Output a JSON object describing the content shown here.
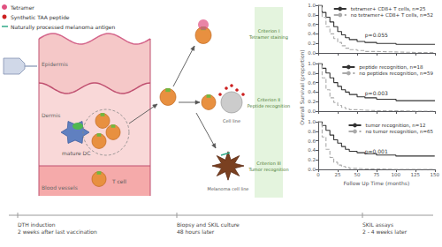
{
  "chart_data": [
    {
      "type": "step",
      "x": [
        0,
        5,
        10,
        15,
        20,
        25,
        30,
        35,
        40,
        50,
        60,
        75,
        100,
        125,
        150
      ],
      "series": [
        {
          "name": "tetramer+ CD8+ T cells, n=25",
          "color": "#333333",
          "line_style": "solid",
          "values": [
            1.0,
            0.85,
            0.75,
            0.65,
            0.55,
            0.45,
            0.38,
            0.32,
            0.28,
            0.24,
            0.22,
            0.2,
            0.18,
            0.18,
            0.18
          ]
        },
        {
          "name": "no tetramer+ CD8+ T cells, n=52",
          "color": "#aaaaaa",
          "line_style": "dashed",
          "values": [
            1.0,
            0.75,
            0.55,
            0.4,
            0.3,
            0.22,
            0.15,
            0.1,
            0.07,
            0.05,
            0.03,
            0.02,
            0.01,
            0.01,
            0.01
          ]
        }
      ],
      "xlim": [
        0,
        150
      ],
      "xticks": [
        0,
        25,
        50,
        75,
        100,
        125,
        150
      ],
      "ylim": [
        0,
        1.0
      ],
      "yticks": [
        {
          "value": 0,
          "label": "0.0"
        },
        0.2,
        0.4,
        0.6,
        0.8,
        {
          "value": 1.0,
          "label": "1.0"
        }
      ],
      "annotations": [
        {
          "text": "p=0.055",
          "x": 60,
          "y": 0.3
        }
      ],
      "legend": "upper right",
      "grid": false,
      "tick_labels": "y"
    },
    {
      "type": "step",
      "x": [
        0,
        5,
        10,
        15,
        20,
        25,
        30,
        35,
        40,
        50,
        60,
        75,
        100,
        125,
        150
      ],
      "series": [
        {
          "name": "peptide recognition, n=18",
          "color": "#333333",
          "line_style": "solid",
          "values": [
            1.0,
            0.9,
            0.8,
            0.7,
            0.6,
            0.52,
            0.45,
            0.4,
            0.35,
            0.3,
            0.28,
            0.25,
            0.22,
            0.22,
            0.22
          ]
        },
        {
          "name": "no peptides recognition, n=59",
          "color": "#aaaaaa",
          "line_style": "dashed",
          "values": [
            1.0,
            0.7,
            0.45,
            0.28,
            0.18,
            0.12,
            0.08,
            0.05,
            0.03,
            0.02,
            0.01,
            0.01,
            0.0,
            0.0,
            0.0
          ]
        }
      ],
      "xlim": [
        0,
        150
      ],
      "xticks": [
        0,
        25,
        50,
        75,
        100,
        125,
        150
      ],
      "ylim": [
        0,
        1.0
      ],
      "yticks": [
        {
          "value": 0,
          "label": "0.0"
        },
        0.2,
        0.4,
        0.6,
        0.8,
        {
          "value": 1.0,
          "label": "1.0"
        }
      ],
      "ylabel": "Overall Survival (proportion)",
      "annotations": [
        {
          "text": "p=0.003",
          "x": 60,
          "y": 0.3
        }
      ],
      "legend": "upper right",
      "grid": false,
      "tick_labels": "y"
    },
    {
      "type": "step",
      "x": [
        0,
        5,
        10,
        15,
        20,
        25,
        30,
        35,
        40,
        50,
        60,
        75,
        100,
        125,
        150
      ],
      "series": [
        {
          "name": "tumor recognition, n=12",
          "color": "#333333",
          "line_style": "solid",
          "values": [
            1.0,
            0.92,
            0.82,
            0.72,
            0.62,
            0.55,
            0.48,
            0.42,
            0.38,
            0.35,
            0.33,
            0.3,
            0.28,
            0.28,
            0.28
          ]
        },
        {
          "name": "no tumor recognition, n=65",
          "color": "#aaaaaa",
          "line_style": "dashed",
          "values": [
            1.0,
            0.68,
            0.42,
            0.25,
            0.15,
            0.09,
            0.06,
            0.04,
            0.02,
            0.01,
            0.01,
            0.0,
            0.0,
            0.0,
            0.0
          ]
        }
      ],
      "xlim": [
        0,
        150
      ],
      "xticks": [
        0,
        25,
        50,
        75,
        100,
        125,
        150
      ],
      "ylim": [
        0,
        1.0
      ],
      "yticks": [
        {
          "value": 0,
          "label": "0.0"
        },
        0.2,
        0.4,
        0.6,
        0.8,
        {
          "value": 1.0,
          "label": "1.0"
        }
      ],
      "xlabel": "Follow Up Time (months)",
      "annotations": [
        {
          "text": "p=0.001",
          "x": 60,
          "y": 0.3
        }
      ],
      "legend": "upper right",
      "grid": false
    },
    {
      "type": "diagram",
      "series": [
        {
          "name": "Tetramer",
          "color": "#e05080",
          "marker": "circle"
        },
        {
          "name": "Synthetic TAA peptide",
          "color": "#cc2020",
          "marker": "circle"
        },
        {
          "name": "Naturally processed melanoma antigen",
          "color": "#30aa88",
          "marker": "line"
        }
      ],
      "annotations": [
        {
          "text": "Epidermis",
          "color": "#666666"
        },
        {
          "text": "Dermis",
          "color": "#666666"
        },
        {
          "text": "Blood vessels",
          "color": "#666666"
        },
        {
          "text": "mature DC",
          "color": "#555555"
        },
        {
          "text": "T cell",
          "color": "#555555"
        },
        {
          "text": "Cell line",
          "color": "#555555"
        },
        {
          "text": "Melanoma cell line",
          "color": "#555555"
        },
        {
          "text": "Criterion I\nTetramer staining",
          "color": "#4a7a30"
        },
        {
          "text": "Criterion II\nPeptide recognition",
          "color": "#4a7a30"
        },
        {
          "text": "Criterion III\nTumor recognition",
          "color": "#4a7a30"
        },
        {
          "text": "DTH induction\n2 weeks after last vaccination",
          "color": "#444444"
        },
        {
          "text": "Biopsy and SKIL culture\n48 hours later",
          "color": "#444444"
        },
        {
          "text": "SKIL assays\n2 - 4 weeks later",
          "color": "#444444"
        }
      ]
    }
  ]
}
